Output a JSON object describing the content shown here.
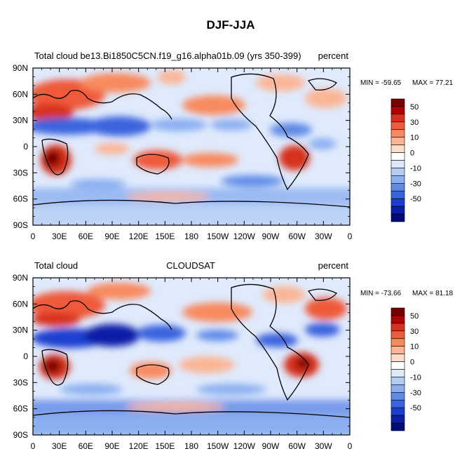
{
  "figure": {
    "title": "DJF-JJA"
  },
  "chart_data": [
    {
      "type": "heatmap",
      "title_left": "Total cloud",
      "title_center": "be13.Bi1850C5CN.f19_g16.alpha01b.09 (yrs 350-399)",
      "title_right": "percent",
      "min_label": "MIN = -59.65",
      "max_label": "MAX =  77.21",
      "min": -59.65,
      "max": 77.21,
      "xlim": [
        0,
        360
      ],
      "ylim": [
        -90,
        90
      ],
      "xticks": [
        "0",
        "30E",
        "60E",
        "90E",
        "120E",
        "150E",
        "180",
        "150W",
        "120W",
        "90W",
        "60W",
        "30W",
        "0"
      ],
      "yticks": [
        "90N",
        "60N",
        "30N",
        "0",
        "30S",
        "60S",
        "90S"
      ]
    },
    {
      "type": "heatmap",
      "title_left": "Total cloud",
      "title_center": "CLOUDSAT",
      "title_right": "percent",
      "min_label": "MIN = -73.66",
      "max_label": "MAX =  81.18",
      "min": -73.66,
      "max": 81.18,
      "xlim": [
        0,
        360
      ],
      "ylim": [
        -90,
        90
      ],
      "xticks": [
        "0",
        "30E",
        "60E",
        "90E",
        "120E",
        "150E",
        "180",
        "150W",
        "120W",
        "90W",
        "60W",
        "30W",
        "0"
      ],
      "yticks": [
        "90N",
        "60N",
        "30N",
        "0",
        "30S",
        "60S",
        "90S"
      ]
    }
  ],
  "colorbar": {
    "levels": [
      "50",
      "",
      "30",
      "",
      "10",
      "",
      "0",
      "",
      "-10",
      "",
      "-30",
      "",
      "-50"
    ],
    "colors": [
      "#7a0000",
      "#b30000",
      "#d7301f",
      "#ef5a3a",
      "#f88a5e",
      "#fbb595",
      "#fddccb",
      "#ffffff",
      "#dbe9fb",
      "#b5cdf5",
      "#8aaff0",
      "#5f8ae6",
      "#3a64dd",
      "#1b3fd0",
      "#0a1ea8",
      "#000b7a"
    ]
  }
}
